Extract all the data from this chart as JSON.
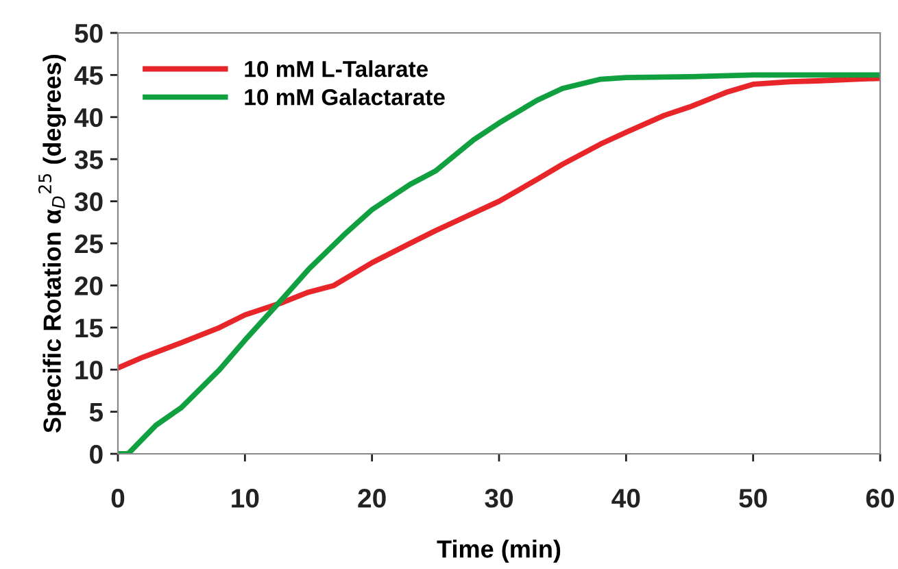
{
  "chart_data": {
    "type": "line",
    "xlabel": "Time (min)",
    "ylabel": "Specific Rotation α$_{D}$$^{25}$ (degrees)",
    "xlim": [
      0,
      60
    ],
    "xticks": [
      0,
      10,
      20,
      30,
      40,
      50,
      60
    ],
    "ylim": [
      0,
      50
    ],
    "yticks": [
      0,
      5,
      10,
      15,
      20,
      25,
      30,
      35,
      40,
      45,
      50
    ],
    "grid": false,
    "legend": "top left",
    "marker": "none",
    "line_style": "solid",
    "series": [
      {
        "name": "10 mM L-Talarate",
        "color": "#e8262a",
        "x": [
          0,
          2,
          5,
          8,
          10,
          13,
          15,
          17,
          20,
          23,
          25,
          28,
          30,
          33,
          35,
          38,
          40,
          43,
          45,
          48,
          50,
          53,
          55,
          58,
          60
        ],
        "values": [
          10.2,
          11.5,
          13.2,
          15,
          16.5,
          18,
          19.2,
          20,
          22.7,
          25,
          26.5,
          28.6,
          30,
          32.6,
          34.4,
          36.8,
          38.2,
          40.2,
          41.2,
          43,
          43.9,
          44.2,
          44.3,
          44.5,
          44.6
        ]
      },
      {
        "name": "10 mM Galactarate",
        "color": "#10a040",
        "x": [
          0,
          0.8,
          3,
          5,
          8,
          10,
          13,
          15,
          18,
          20,
          23,
          25,
          28,
          30,
          33,
          35,
          38,
          40,
          45,
          50,
          55,
          60
        ],
        "values": [
          0,
          0,
          3.4,
          5.5,
          10,
          13.5,
          18.5,
          21.9,
          26.3,
          29,
          32,
          33.6,
          37.3,
          39.3,
          42,
          43.4,
          44.5,
          44.7,
          44.8,
          45,
          45,
          45
        ]
      }
    ]
  }
}
